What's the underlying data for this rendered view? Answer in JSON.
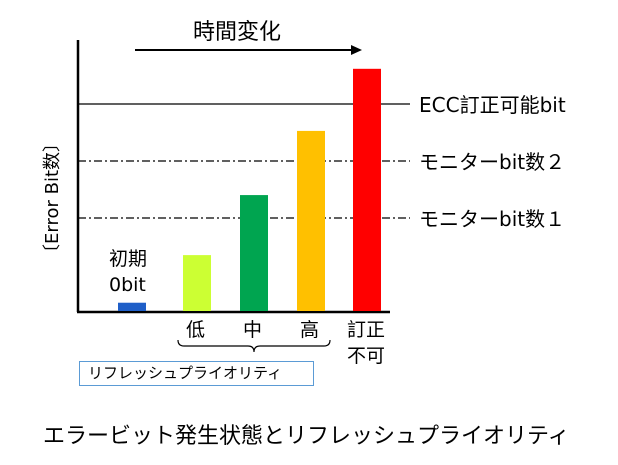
{
  "diagram": {
    "time_label": "時間変化",
    "y_axis_label": "〔Error Bit数〕",
    "initial_label_line1": "初期",
    "initial_label_line2": "0bit",
    "thresholds": {
      "ecc": "ECC訂正可能bit",
      "monitor2": "モニターbit数２",
      "monitor1": "モニターbit数１"
    },
    "bars": [
      {
        "label": "",
        "color": "#1f5fc8",
        "level": 0.04
      },
      {
        "label": "低",
        "color": "#ccff33",
        "level": 0.27
      },
      {
        "label": "中",
        "color": "#00a550",
        "level": 0.56
      },
      {
        "label": "高",
        "color": "#ffc000",
        "level": 0.87
      },
      {
        "label_line1": "訂正",
        "label_line2": "不可",
        "color": "#ff0000",
        "level": 1.17
      }
    ],
    "priority_label": "リフレッシュプライオリティ",
    "caption": "エラービット発生状態とリフレッシュプライオリティ"
  }
}
